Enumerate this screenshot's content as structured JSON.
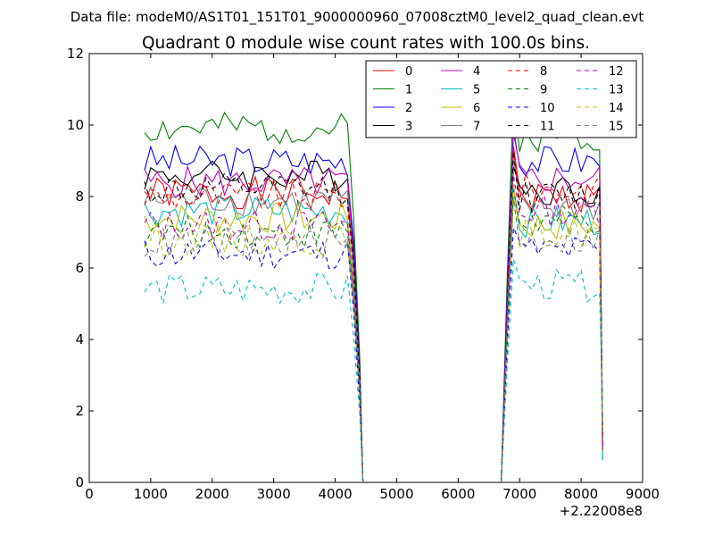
{
  "figure": {
    "suptitle": "Data file: modeM0/AS1T01_151T01_9000000960_07008cztM0_level2_quad_clean.evt"
  },
  "chart_data": {
    "type": "line",
    "title": "Quadrant 0 module wise count rates with 100.0s bins.",
    "xlabel": "",
    "ylabel": "",
    "x_offset_label": "+2.22008e8",
    "xlim": [
      0,
      9000
    ],
    "ylim": [
      0,
      12
    ],
    "xticks": [
      0,
      1000,
      2000,
      3000,
      4000,
      5000,
      6000,
      7000,
      8000,
      9000
    ],
    "xtick_labels": [
      "0",
      "1000",
      "2000",
      "3000",
      "4000",
      "5000",
      "6000",
      "7000",
      "8000",
      "9000"
    ],
    "yticks": [
      0,
      2,
      4,
      6,
      8,
      10,
      12
    ],
    "ytick_labels": [
      "0",
      "2",
      "4",
      "6",
      "8",
      "10",
      "12"
    ],
    "grid": false,
    "legend": {
      "placement": "top-right",
      "columns": 4
    },
    "bin_width": 100,
    "segments": [
      {
        "start": 900,
        "end": 4200,
        "drop_to": 4450
      },
      {
        "gap_start": 4450,
        "gap_end": 6700
      },
      {
        "start": 6900,
        "end": 8300,
        "drop_to": 8350
      }
    ],
    "series": [
      {
        "name": "0",
        "color": "#ff0000",
        "dash": "solid",
        "level_a": 8.1,
        "level_b": 8.0
      },
      {
        "name": "1",
        "color": "#008000",
        "dash": "solid",
        "level_a": 9.9,
        "level_b": 9.7
      },
      {
        "name": "2",
        "color": "#0000ff",
        "dash": "solid",
        "level_a": 9.0,
        "level_b": 9.0
      },
      {
        "name": "3",
        "color": "#000000",
        "dash": "solid",
        "level_a": 8.6,
        "level_b": 8.2
      },
      {
        "name": "4",
        "color": "#bf00bf",
        "dash": "solid",
        "level_a": 8.4,
        "level_b": 8.5
      },
      {
        "name": "5",
        "color": "#00bfbf",
        "dash": "solid",
        "level_a": 7.6,
        "level_b": 7.3
      },
      {
        "name": "6",
        "color": "#bfbf00",
        "dash": "solid",
        "level_a": 7.4,
        "level_b": 7.2
      },
      {
        "name": "7",
        "color": "#808080",
        "dash": "solid",
        "level_a": 7.9,
        "level_b": 7.7
      },
      {
        "name": "8",
        "color": "#ff0000",
        "dash": "dashed",
        "level_a": 8.0,
        "level_b": 8.2
      },
      {
        "name": "9",
        "color": "#008000",
        "dash": "dashed",
        "level_a": 7.0,
        "level_b": 7.3
      },
      {
        "name": "10",
        "color": "#0000ff",
        "dash": "dashed",
        "level_a": 6.4,
        "level_b": 6.5
      },
      {
        "name": "11",
        "color": "#000000",
        "dash": "dashed",
        "level_a": 8.2,
        "level_b": 8.0
      },
      {
        "name": "12",
        "color": "#bf00bf",
        "dash": "dashed",
        "level_a": 7.2,
        "level_b": 7.6
      },
      {
        "name": "13",
        "color": "#00bfbf",
        "dash": "dashed",
        "level_a": 5.4,
        "level_b": 5.5
      },
      {
        "name": "14",
        "color": "#bfbf00",
        "dash": "dashed",
        "level_a": 6.8,
        "level_b": 7.0
      },
      {
        "name": "15",
        "color": "#808080",
        "dash": "dashed",
        "level_a": 6.7,
        "level_b": 6.8
      }
    ]
  }
}
